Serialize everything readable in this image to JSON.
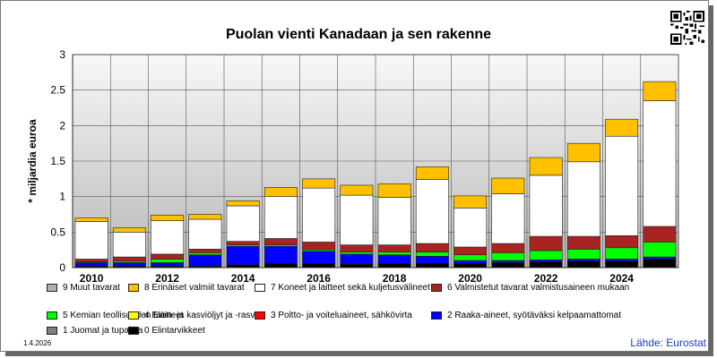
{
  "title": "Puolan vienti Kanadaan ja sen rakenne",
  "footer": {
    "date": "1.4.2026",
    "source": "Lähde: Eurostat"
  },
  "chart_data": {
    "type": "bar",
    "stacked": true,
    "title": "Puolan vienti Kanadaan ja sen rakenne",
    "xlabel": "",
    "ylabel": "* miljardia euroa",
    "ylim": [
      0,
      3
    ],
    "yticks": [
      0,
      0.5,
      1,
      1.5,
      2,
      2.5,
      3
    ],
    "ytick_labels": [
      "0",
      "0.5",
      "1",
      "1.5",
      "2",
      "2.5",
      "3"
    ],
    "xtick_labels": [
      "2010",
      "2012",
      "2014",
      "2016",
      "2018",
      "2020",
      "2022",
      "2024"
    ],
    "categories": [
      2010,
      2011,
      2012,
      2013,
      2014,
      2015,
      2016,
      2017,
      2018,
      2019,
      2020,
      2021,
      2022,
      2023,
      2024,
      2025
    ],
    "grid": true,
    "series": [
      {
        "name": "0 Elintarvikkeet",
        "color": "#000000",
        "values": [
          0.02,
          0.02,
          0.02,
          0.02,
          0.04,
          0.06,
          0.06,
          0.05,
          0.06,
          0.06,
          0.06,
          0.07,
          0.08,
          0.09,
          0.09,
          0.12
        ]
      },
      {
        "name": "1 Juomat ja tupakka",
        "color": "#808080",
        "values": [
          0,
          0,
          0,
          0,
          0,
          0,
          0,
          0,
          0,
          0,
          0,
          0,
          0,
          0,
          0,
          0
        ]
      },
      {
        "name": "2 Raaka-aineet, syötäväksi kelpaamattomat",
        "color": "#0000ff",
        "values": [
          0.05,
          0.05,
          0.05,
          0.16,
          0.26,
          0.24,
          0.17,
          0.14,
          0.12,
          0.1,
          0.04,
          0.03,
          0.03,
          0.03,
          0.03,
          0.03
        ]
      },
      {
        "name": "3 Poltto- ja voiteluaineet, sähkövirta",
        "color": "#ff0000",
        "values": [
          0,
          0,
          0,
          0,
          0,
          0,
          0,
          0,
          0,
          0,
          0,
          0,
          0,
          0,
          0,
          0
        ]
      },
      {
        "name": "4 Eläin- ja kasviöljyt ja -rasvat",
        "color": "#ffff00",
        "values": [
          0,
          0,
          0,
          0,
          0,
          0,
          0,
          0,
          0,
          0,
          0,
          0,
          0,
          0,
          0,
          0
        ]
      },
      {
        "name": "5 Kemian teollisuuden tuotteet",
        "color": "#00ff00",
        "values": [
          0.01,
          0.02,
          0.05,
          0.03,
          0.02,
          0.02,
          0.02,
          0.03,
          0.04,
          0.06,
          0.08,
          0.11,
          0.13,
          0.14,
          0.16,
          0.21
        ]
      },
      {
        "name": "6 Valmistetut tavarat valmistusaineen mukaan",
        "color": "#aa2222",
        "values": [
          0.04,
          0.06,
          0.07,
          0.05,
          0.05,
          0.09,
          0.11,
          0.1,
          0.1,
          0.12,
          0.11,
          0.13,
          0.2,
          0.18,
          0.17,
          0.22
        ]
      },
      {
        "name": "7 Koneet ja laitteet sekä kuljetusvälineet",
        "color": "#ffffff",
        "values": [
          0.53,
          0.35,
          0.47,
          0.42,
          0.5,
          0.59,
          0.76,
          0.7,
          0.67,
          0.9,
          0.55,
          0.7,
          0.86,
          1.05,
          1.4,
          1.77
        ]
      },
      {
        "name": "8 Erinäiset valmiit tavarat",
        "color": "#ffc000",
        "values": [
          0.05,
          0.06,
          0.08,
          0.07,
          0.07,
          0.13,
          0.13,
          0.14,
          0.19,
          0.18,
          0.17,
          0.22,
          0.25,
          0.26,
          0.24,
          0.27
        ]
      },
      {
        "name": "9 Muut tavarat",
        "color": "#b0b0b0",
        "values": [
          0,
          0,
          0,
          0,
          0,
          0,
          0,
          0,
          0,
          0,
          0,
          0,
          0,
          0,
          0,
          0
        ]
      }
    ]
  },
  "legend_rows": [
    [
      {
        "label": "9 Muut tavarat",
        "color": "#b0b0b0"
      },
      {
        "label": "8 Erinäiset valmiit tavarat",
        "color": "#ffc000"
      },
      {
        "label": "7 Koneet ja laitteet sekä kuljetusvälineet",
        "color": "#ffffff"
      },
      {
        "label": "6 Valmistetut tavarat valmistusaineen mukaan",
        "color": "#aa2222"
      }
    ],
    [
      {
        "label": "5 Kemian teollisuuden tuotteet",
        "color": "#00ff00"
      },
      {
        "label": "4 Eläin- ja kasviöljyt ja -rasvat",
        "color": "#ffff00"
      },
      {
        "label": "3 Poltto- ja voiteluaineet, sähkövirta",
        "color": "#ff0000"
      },
      {
        "label": "2 Raaka-aineet, syötäväksi kelpaamattomat",
        "color": "#0000ff"
      }
    ],
    [
      {
        "label": "1 Juomat ja tupakka",
        "color": "#808080"
      },
      {
        "label": "0 Elintarvikkeet",
        "color": "#000000"
      }
    ]
  ]
}
